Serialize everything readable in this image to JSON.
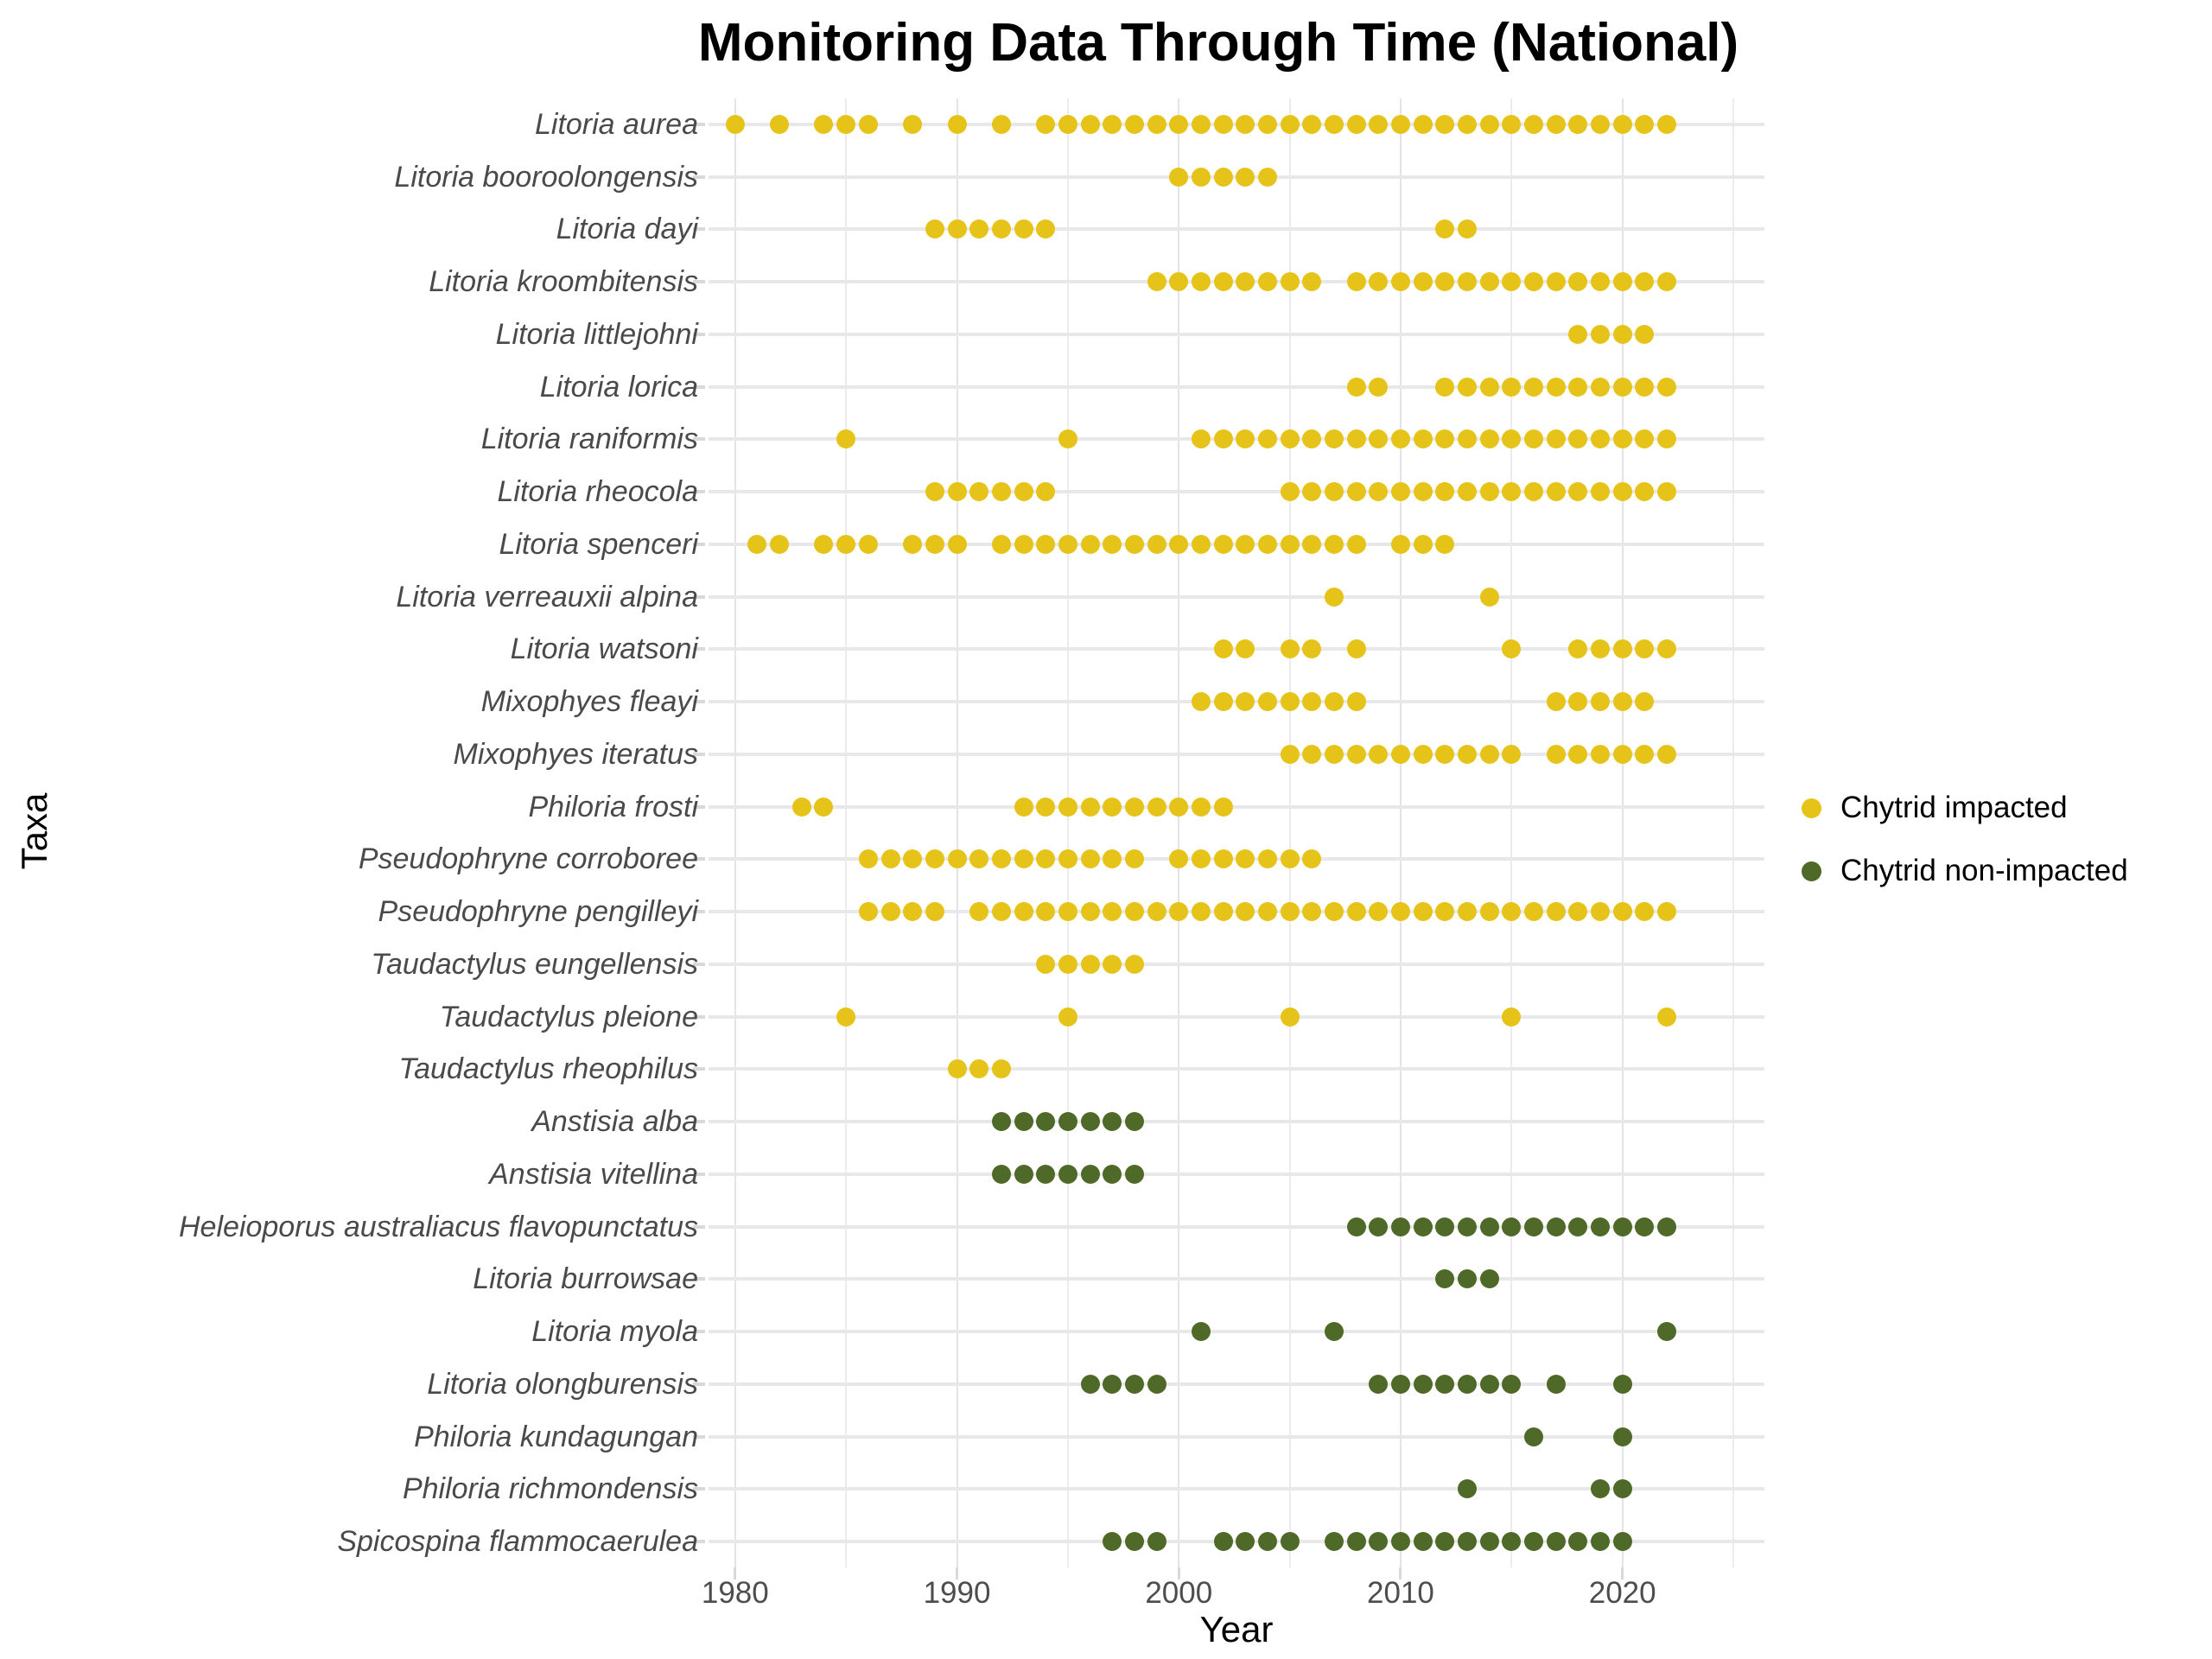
{
  "title": "Monitoring Data Through Time (National)",
  "x_axis_title": "Year",
  "y_axis_title": "Taxa",
  "legend": [
    {
      "label": "Chytrid impacted",
      "color": "#e6c319"
    },
    {
      "label": "Chytrid non-impacted",
      "color": "#4f6a28"
    }
  ],
  "colors": {
    "impacted": "#e6c319",
    "non_impacted": "#4f6a28",
    "grid": "#e8e8e8",
    "axis_text": "#4d4d4d"
  },
  "chart_data": {
    "type": "scatter",
    "title": "Monitoring Data Through Time (National)",
    "xlabel": "Year",
    "ylabel": "Taxa",
    "xlim": [
      1978.8,
      2026.4
    ],
    "x_major_gridlines": [
      1980,
      1990,
      2000,
      2010,
      2020
    ],
    "x_minor_gridlines": [
      1985,
      1995,
      2005,
      2015,
      2025
    ],
    "x_tick_labels": [
      "1980",
      "1990",
      "2000",
      "2010",
      "2020"
    ],
    "grid": "on",
    "legend_position": "right",
    "series": [
      {
        "name": "Litoria aurea",
        "group": "impacted",
        "years": [
          1980,
          1982,
          1984,
          1985,
          1986,
          1988,
          1990,
          1992,
          1994,
          1995,
          1996,
          1997,
          1998,
          1999,
          2000,
          2001,
          2002,
          2003,
          2004,
          2005,
          2006,
          2007,
          2008,
          2009,
          2010,
          2011,
          2012,
          2013,
          2014,
          2015,
          2016,
          2017,
          2018,
          2019,
          2020,
          2021,
          2022
        ]
      },
      {
        "name": "Litoria booroolongensis",
        "group": "impacted",
        "years": [
          2000,
          2001,
          2002,
          2003,
          2004
        ]
      },
      {
        "name": "Litoria dayi",
        "group": "impacted",
        "years": [
          1989,
          1990,
          1991,
          1992,
          1993,
          1994,
          2012,
          2013
        ]
      },
      {
        "name": "Litoria kroombitensis",
        "group": "impacted",
        "years": [
          1999,
          2000,
          2001,
          2002,
          2003,
          2004,
          2005,
          2006,
          2008,
          2009,
          2010,
          2011,
          2012,
          2013,
          2014,
          2015,
          2016,
          2017,
          2018,
          2019,
          2020,
          2021,
          2022
        ]
      },
      {
        "name": "Litoria littlejohni",
        "group": "impacted",
        "years": [
          2018,
          2019,
          2020,
          2021
        ]
      },
      {
        "name": "Litoria lorica",
        "group": "impacted",
        "years": [
          2008,
          2009,
          2012,
          2013,
          2014,
          2015,
          2016,
          2017,
          2018,
          2019,
          2020,
          2021,
          2022
        ]
      },
      {
        "name": "Litoria raniformis",
        "group": "impacted",
        "years": [
          1985,
          1995,
          2001,
          2002,
          2003,
          2004,
          2005,
          2006,
          2007,
          2008,
          2009,
          2010,
          2011,
          2012,
          2013,
          2014,
          2015,
          2016,
          2017,
          2018,
          2019,
          2020,
          2021,
          2022
        ]
      },
      {
        "name": "Litoria rheocola",
        "group": "impacted",
        "years": [
          1989,
          1990,
          1991,
          1992,
          1993,
          1994,
          2005,
          2006,
          2007,
          2008,
          2009,
          2010,
          2011,
          2012,
          2013,
          2014,
          2015,
          2016,
          2017,
          2018,
          2019,
          2020,
          2021,
          2022
        ]
      },
      {
        "name": "Litoria spenceri",
        "group": "impacted",
        "years": [
          1981,
          1982,
          1984,
          1985,
          1986,
          1988,
          1989,
          1990,
          1992,
          1993,
          1994,
          1995,
          1996,
          1997,
          1998,
          1999,
          2000,
          2001,
          2002,
          2003,
          2004,
          2005,
          2006,
          2007,
          2008,
          2010,
          2011,
          2012
        ]
      },
      {
        "name": "Litoria verreauxii alpina",
        "group": "impacted",
        "years": [
          2007,
          2014
        ]
      },
      {
        "name": "Litoria watsoni",
        "group": "impacted",
        "years": [
          2002,
          2003,
          2005,
          2006,
          2008,
          2015,
          2018,
          2019,
          2020,
          2021,
          2022
        ]
      },
      {
        "name": "Mixophyes fleayi",
        "group": "impacted",
        "years": [
          2001,
          2002,
          2003,
          2004,
          2005,
          2006,
          2007,
          2008,
          2017,
          2018,
          2019,
          2020,
          2021
        ]
      },
      {
        "name": "Mixophyes iteratus",
        "group": "impacted",
        "years": [
          2005,
          2006,
          2007,
          2008,
          2009,
          2010,
          2011,
          2012,
          2013,
          2014,
          2015,
          2017,
          2018,
          2019,
          2020,
          2021,
          2022
        ]
      },
      {
        "name": "Philoria frosti",
        "group": "impacted",
        "years": [
          1983,
          1984,
          1993,
          1994,
          1995,
          1996,
          1997,
          1998,
          1999,
          2000,
          2001,
          2002
        ]
      },
      {
        "name": "Pseudophryne corroboree",
        "group": "impacted",
        "years": [
          1986,
          1987,
          1988,
          1989,
          1990,
          1991,
          1992,
          1993,
          1994,
          1995,
          1996,
          1997,
          1998,
          2000,
          2001,
          2002,
          2003,
          2004,
          2005,
          2006
        ]
      },
      {
        "name": "Pseudophryne pengilleyi",
        "group": "impacted",
        "years": [
          1986,
          1987,
          1988,
          1989,
          1991,
          1992,
          1993,
          1994,
          1995,
          1996,
          1997,
          1998,
          1999,
          2000,
          2001,
          2002,
          2003,
          2004,
          2005,
          2006,
          2007,
          2008,
          2009,
          2010,
          2011,
          2012,
          2013,
          2014,
          2015,
          2016,
          2017,
          2018,
          2019,
          2020,
          2021,
          2022
        ]
      },
      {
        "name": "Taudactylus eungellensis",
        "group": "impacted",
        "years": [
          1994,
          1995,
          1996,
          1997,
          1998
        ]
      },
      {
        "name": "Taudactylus pleione",
        "group": "impacted",
        "years": [
          1985,
          1995,
          2005,
          2015,
          2022
        ]
      },
      {
        "name": "Taudactylus rheophilus",
        "group": "impacted",
        "years": [
          1990,
          1991,
          1992
        ]
      },
      {
        "name": "Anstisia alba",
        "group": "non_impacted",
        "years": [
          1992,
          1993,
          1994,
          1995,
          1996,
          1997,
          1998
        ]
      },
      {
        "name": "Anstisia vitellina",
        "group": "non_impacted",
        "years": [
          1992,
          1993,
          1994,
          1995,
          1996,
          1997,
          1998
        ]
      },
      {
        "name": "Heleioporus australiacus flavopunctatus",
        "group": "non_impacted",
        "years": [
          2008,
          2009,
          2010,
          2011,
          2012,
          2013,
          2014,
          2015,
          2016,
          2017,
          2018,
          2019,
          2020,
          2021,
          2022
        ]
      },
      {
        "name": "Litoria burrowsae",
        "group": "non_impacted",
        "years": [
          2012,
          2013,
          2014
        ]
      },
      {
        "name": "Litoria myola",
        "group": "non_impacted",
        "years": [
          2001,
          2007,
          2022
        ]
      },
      {
        "name": "Litoria olongburensis",
        "group": "non_impacted",
        "years": [
          1996,
          1997,
          1998,
          1999,
          2009,
          2010,
          2011,
          2012,
          2013,
          2014,
          2015,
          2017,
          2020
        ]
      },
      {
        "name": "Philoria kundagungan",
        "group": "non_impacted",
        "years": [
          2016,
          2020
        ]
      },
      {
        "name": "Philoria richmondensis",
        "group": "non_impacted",
        "years": [
          2013,
          2019,
          2020
        ]
      },
      {
        "name": "Spicospina flammocaerulea",
        "group": "non_impacted",
        "years": [
          1997,
          1998,
          1999,
          2002,
          2003,
          2004,
          2005,
          2007,
          2008,
          2009,
          2010,
          2011,
          2012,
          2013,
          2014,
          2015,
          2016,
          2017,
          2018,
          2019,
          2020
        ]
      }
    ]
  }
}
